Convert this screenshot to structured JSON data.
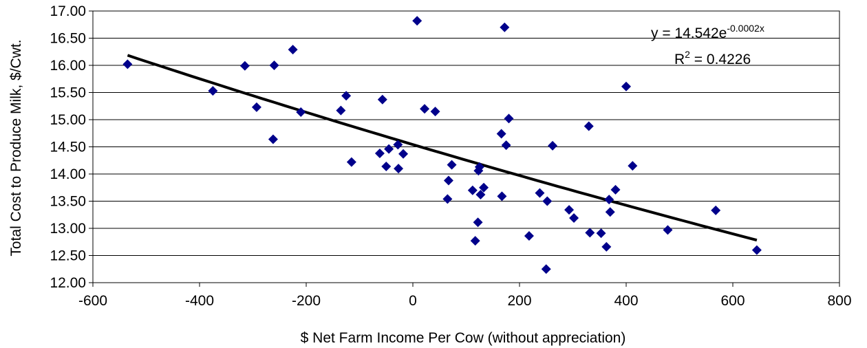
{
  "chart_data": {
    "type": "scatter",
    "xlabel": "$ Net Farm Income Per Cow (without appreciation)",
    "ylabel": "Total Cost to Produce Milk, $/Cwt.",
    "xlim": [
      -600,
      800
    ],
    "ylim": [
      12.0,
      17.0
    ],
    "x_ticks": [
      "-600",
      "-400",
      "-200",
      "0",
      "200",
      "400",
      "600",
      "800"
    ],
    "y_ticks": [
      "12.00",
      "12.50",
      "13.00",
      "13.50",
      "14.00",
      "14.50",
      "15.00",
      "15.50",
      "16.00",
      "16.50",
      "17.00"
    ],
    "grid": "horizontal",
    "marker_color": "#00008B",
    "trendline_color": "#000000",
    "trendline": {
      "type": "exponential",
      "a": 14.542,
      "b": -0.0002,
      "x_range": [
        -535,
        645
      ],
      "equation_prefix": "y = 14.542e",
      "equation_exponent": "-0.0002x",
      "r2_prefix": "R",
      "r2_sup": "2",
      "r2_suffix": " = 0.4226"
    },
    "points": [
      {
        "x": -535,
        "y": 16.02
      },
      {
        "x": -375,
        "y": 15.53
      },
      {
        "x": -315,
        "y": 15.99
      },
      {
        "x": -293,
        "y": 15.23
      },
      {
        "x": -260,
        "y": 16.0
      },
      {
        "x": -262,
        "y": 14.64
      },
      {
        "x": -225,
        "y": 16.29
      },
      {
        "x": -210,
        "y": 15.14
      },
      {
        "x": -135,
        "y": 15.17
      },
      {
        "x": -125,
        "y": 15.44
      },
      {
        "x": -115,
        "y": 14.22
      },
      {
        "x": -57,
        "y": 15.37
      },
      {
        "x": -62,
        "y": 14.38
      },
      {
        "x": -45,
        "y": 14.46
      },
      {
        "x": -50,
        "y": 14.14
      },
      {
        "x": -28,
        "y": 14.54
      },
      {
        "x": -27,
        "y": 14.1
      },
      {
        "x": -18,
        "y": 14.37
      },
      {
        "x": 8,
        "y": 16.82
      },
      {
        "x": 22,
        "y": 15.2
      },
      {
        "x": 42,
        "y": 15.15
      },
      {
        "x": 65,
        "y": 13.54
      },
      {
        "x": 67,
        "y": 13.88
      },
      {
        "x": 73,
        "y": 14.17
      },
      {
        "x": 112,
        "y": 13.7
      },
      {
        "x": 117,
        "y": 12.77
      },
      {
        "x": 122,
        "y": 13.11
      },
      {
        "x": 123,
        "y": 14.06
      },
      {
        "x": 125,
        "y": 14.13
      },
      {
        "x": 127,
        "y": 13.62
      },
      {
        "x": 133,
        "y": 13.75
      },
      {
        "x": 166,
        "y": 14.74
      },
      {
        "x": 167,
        "y": 13.59
      },
      {
        "x": 172,
        "y": 16.7
      },
      {
        "x": 175,
        "y": 14.53
      },
      {
        "x": 180,
        "y": 15.02
      },
      {
        "x": 218,
        "y": 12.86
      },
      {
        "x": 238,
        "y": 13.65
      },
      {
        "x": 250,
        "y": 12.25
      },
      {
        "x": 252,
        "y": 13.5
      },
      {
        "x": 262,
        "y": 14.52
      },
      {
        "x": 293,
        "y": 13.34
      },
      {
        "x": 302,
        "y": 13.19
      },
      {
        "x": 330,
        "y": 14.88
      },
      {
        "x": 332,
        "y": 12.92
      },
      {
        "x": 353,
        "y": 12.91
      },
      {
        "x": 363,
        "y": 12.66
      },
      {
        "x": 368,
        "y": 13.53
      },
      {
        "x": 370,
        "y": 13.3
      },
      {
        "x": 380,
        "y": 13.71
      },
      {
        "x": 400,
        "y": 15.61
      },
      {
        "x": 412,
        "y": 14.15
      },
      {
        "x": 478,
        "y": 12.97
      },
      {
        "x": 568,
        "y": 13.33
      },
      {
        "x": 645,
        "y": 12.6
      }
    ]
  }
}
